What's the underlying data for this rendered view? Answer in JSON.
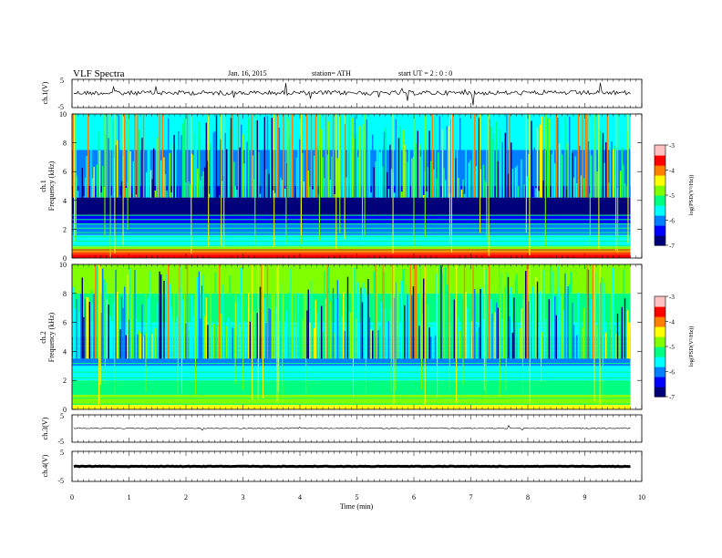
{
  "header": {
    "title": "VLF Spectra",
    "date": "Jan. 16, 2015",
    "station": "station= ATH",
    "start": "start  UT =  2 : 0 : 0"
  },
  "chart_data": [
    {
      "type": "line",
      "panel": "ch1-waveform",
      "ylabel": "ch.1(V)",
      "yticks": [
        "5",
        "-5"
      ],
      "ylim": [
        -5,
        5
      ],
      "description_level_v": 0.2,
      "x_range_min": [
        0,
        9.8
      ]
    },
    {
      "type": "heatmap",
      "panel": "ch1-spectrogram",
      "ylabel_channel": "ch.1",
      "ylabel": "Frequency  (kHz)",
      "yticks": [
        "0",
        "2",
        "4",
        "6",
        "8",
        "10"
      ],
      "ylim": [
        0,
        10
      ],
      "colorbar": {
        "label": "log(PSD(V²/Hz))",
        "ticks": [
          "-3",
          "-4",
          "-5",
          "-6",
          "-7"
        ],
        "range": [
          -7,
          -3
        ],
        "colors": [
          "#00007a",
          "#0000ff",
          "#0080ff",
          "#00ffff",
          "#00ff80",
          "#80ff00",
          "#ffff00",
          "#ff8000",
          "#ff0000",
          "#ffc0c0"
        ]
      }
    },
    {
      "type": "heatmap",
      "panel": "ch2-spectrogram",
      "ylabel_channel": "ch.2",
      "ylabel": "Frequency  (kHz)",
      "yticks": [
        "0",
        "2",
        "4",
        "6",
        "8",
        "10"
      ],
      "ylim": [
        0,
        10
      ],
      "colorbar": {
        "label": "log(PSD(V²/Hz))",
        "ticks": [
          "-3",
          "-4",
          "-5",
          "-6",
          "-7"
        ],
        "range": [
          -7,
          -3
        ]
      }
    },
    {
      "type": "line",
      "panel": "ch3-waveform",
      "ylabel": "ch.3(V)",
      "yticks": [
        "5",
        "-5"
      ],
      "ylim": [
        -5,
        5
      ],
      "level_v": 0.1
    },
    {
      "type": "line",
      "panel": "ch4-waveform",
      "ylabel": "ch.4(V)",
      "yticks": [
        "5",
        "-5"
      ],
      "ylim": [
        -5,
        5
      ],
      "level_v": 0.0
    }
  ],
  "xaxis": {
    "label": "Time  (min)",
    "ticks": [
      "0",
      "1",
      "2",
      "3",
      "4",
      "5",
      "6",
      "7",
      "8",
      "9",
      "10"
    ],
    "range": [
      0,
      10
    ]
  }
}
